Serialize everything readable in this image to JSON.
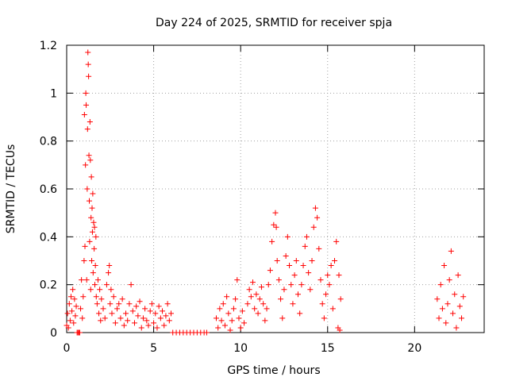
{
  "chart_data": {
    "type": "scatter",
    "title": "Day 224 of 2025, SRMTID for receiver spja",
    "xlabel": "GPS time / hours",
    "ylabel": "SRMTID / TECUs",
    "xlim": [
      0,
      24
    ],
    "ylim": [
      0,
      1.2
    ],
    "grid": true,
    "marker": "+",
    "color": "#ff0000",
    "x_ticks": [
      0,
      5,
      10,
      15,
      20
    ],
    "x_tick_labels": [
      "0",
      "5",
      "10",
      "15",
      "20"
    ],
    "y_ticks": [
      0,
      0.2,
      0.4,
      0.6,
      0.8,
      1.0,
      1.2
    ],
    "y_tick_labels": [
      "0",
      "0.2",
      "0.4",
      "0.6",
      "0.8",
      "1",
      "1.2"
    ],
    "series": [
      {
        "name": "SRMTID",
        "points": [
          [
            0.0,
            0.03
          ],
          [
            0.05,
            0.08
          ],
          [
            0.1,
            0.02
          ],
          [
            0.15,
            0.12
          ],
          [
            0.2,
            0.05
          ],
          [
            0.25,
            0.15
          ],
          [
            0.3,
            0.09
          ],
          [
            0.35,
            0.18
          ],
          [
            0.4,
            0.04
          ],
          [
            0.45,
            0.14
          ],
          [
            0.5,
            0.07
          ],
          [
            0.55,
            0.11
          ],
          [
            0.6,
            0.0
          ],
          [
            0.65,
            0.0
          ],
          [
            0.7,
            0.0
          ],
          [
            0.75,
            0.0
          ],
          [
            0.8,
            0.1
          ],
          [
            0.85,
            0.22
          ],
          [
            0.9,
            0.06
          ],
          [
            0.95,
            0.15
          ],
          [
            1.0,
            0.3
          ],
          [
            1.02,
            0.91
          ],
          [
            1.05,
            0.36
          ],
          [
            1.08,
            0.7
          ],
          [
            1.1,
            1.0
          ],
          [
            1.12,
            0.95
          ],
          [
            1.15,
            0.22
          ],
          [
            1.18,
            0.6
          ],
          [
            1.2,
            0.85
          ],
          [
            1.22,
            1.17
          ],
          [
            1.24,
            1.12
          ],
          [
            1.26,
            1.07
          ],
          [
            1.28,
            0.74
          ],
          [
            1.3,
            0.55
          ],
          [
            1.32,
            0.38
          ],
          [
            1.34,
            0.88
          ],
          [
            1.36,
            0.72
          ],
          [
            1.38,
            0.18
          ],
          [
            1.4,
            0.48
          ],
          [
            1.42,
            0.65
          ],
          [
            1.44,
            0.3
          ],
          [
            1.46,
            0.52
          ],
          [
            1.48,
            0.42
          ],
          [
            1.5,
            0.58
          ],
          [
            1.52,
            0.25
          ],
          [
            1.55,
            0.46
          ],
          [
            1.58,
            0.35
          ],
          [
            1.6,
            0.44
          ],
          [
            1.62,
            0.2
          ],
          [
            1.65,
            0.28
          ],
          [
            1.68,
            0.4
          ],
          [
            1.7,
            0.15
          ],
          [
            1.75,
            0.12
          ],
          [
            1.8,
            0.22
          ],
          [
            1.85,
            0.08
          ],
          [
            1.9,
            0.18
          ],
          [
            1.95,
            0.05
          ],
          [
            2.0,
            0.14
          ],
          [
            2.1,
            0.1
          ],
          [
            2.2,
            0.06
          ],
          [
            2.3,
            0.2
          ],
          [
            2.4,
            0.25
          ],
          [
            2.45,
            0.28
          ],
          [
            2.5,
            0.12
          ],
          [
            2.55,
            0.18
          ],
          [
            2.6,
            0.08
          ],
          [
            2.7,
            0.15
          ],
          [
            2.8,
            0.04
          ],
          [
            2.9,
            0.1
          ],
          [
            3.0,
            0.12
          ],
          [
            3.1,
            0.06
          ],
          [
            3.2,
            0.14
          ],
          [
            3.3,
            0.03
          ],
          [
            3.4,
            0.08
          ],
          [
            3.5,
            0.05
          ],
          [
            3.6,
            0.12
          ],
          [
            3.7,
            0.2
          ],
          [
            3.8,
            0.09
          ],
          [
            3.9,
            0.04
          ],
          [
            4.0,
            0.11
          ],
          [
            4.1,
            0.07
          ],
          [
            4.2,
            0.13
          ],
          [
            4.3,
            0.02
          ],
          [
            4.4,
            0.06
          ],
          [
            4.5,
            0.1
          ],
          [
            4.6,
            0.05
          ],
          [
            4.7,
            0.03
          ],
          [
            4.8,
            0.09
          ],
          [
            4.9,
            0.12
          ],
          [
            5.0,
            0.04
          ],
          [
            5.1,
            0.08
          ],
          [
            5.2,
            0.02
          ],
          [
            5.3,
            0.11
          ],
          [
            5.4,
            0.06
          ],
          [
            5.5,
            0.09
          ],
          [
            5.6,
            0.03
          ],
          [
            5.7,
            0.07
          ],
          [
            5.8,
            0.12
          ],
          [
            5.9,
            0.05
          ],
          [
            6.0,
            0.08
          ],
          [
            6.1,
            0.0
          ],
          [
            6.3,
            0.0
          ],
          [
            6.5,
            0.0
          ],
          [
            6.7,
            0.0
          ],
          [
            6.9,
            0.0
          ],
          [
            7.1,
            0.0
          ],
          [
            7.3,
            0.0
          ],
          [
            7.5,
            0.0
          ],
          [
            7.7,
            0.0
          ],
          [
            7.9,
            0.0
          ],
          [
            8.05,
            0.0
          ],
          [
            8.6,
            0.06
          ],
          [
            8.7,
            0.02
          ],
          [
            8.8,
            0.1
          ],
          [
            8.9,
            0.05
          ],
          [
            9.0,
            0.12
          ],
          [
            9.1,
            0.03
          ],
          [
            9.2,
            0.15
          ],
          [
            9.3,
            0.08
          ],
          [
            9.4,
            0.01
          ],
          [
            9.5,
            0.05
          ],
          [
            9.6,
            0.1
          ],
          [
            9.7,
            0.14
          ],
          [
            9.8,
            0.22
          ],
          [
            9.9,
            0.06
          ],
          [
            10.0,
            0.02
          ],
          [
            10.1,
            0.09
          ],
          [
            10.2,
            0.04
          ],
          [
            10.4,
            0.12
          ],
          [
            10.5,
            0.18
          ],
          [
            10.6,
            0.15
          ],
          [
            10.7,
            0.21
          ],
          [
            10.8,
            0.1
          ],
          [
            10.9,
            0.16
          ],
          [
            11.0,
            0.08
          ],
          [
            11.1,
            0.14
          ],
          [
            11.2,
            0.19
          ],
          [
            11.3,
            0.12
          ],
          [
            11.4,
            0.05
          ],
          [
            11.5,
            0.1
          ],
          [
            11.6,
            0.2
          ],
          [
            11.7,
            0.26
          ],
          [
            11.8,
            0.38
          ],
          [
            11.9,
            0.45
          ],
          [
            12.0,
            0.5
          ],
          [
            12.05,
            0.44
          ],
          [
            12.1,
            0.3
          ],
          [
            12.2,
            0.22
          ],
          [
            12.3,
            0.14
          ],
          [
            12.4,
            0.06
          ],
          [
            12.5,
            0.18
          ],
          [
            12.6,
            0.32
          ],
          [
            12.7,
            0.4
          ],
          [
            12.8,
            0.28
          ],
          [
            12.9,
            0.2
          ],
          [
            13.0,
            0.12
          ],
          [
            13.1,
            0.24
          ],
          [
            13.2,
            0.3
          ],
          [
            13.3,
            0.16
          ],
          [
            13.4,
            0.08
          ],
          [
            13.5,
            0.2
          ],
          [
            13.6,
            0.28
          ],
          [
            13.7,
            0.36
          ],
          [
            13.8,
            0.4
          ],
          [
            13.9,
            0.25
          ],
          [
            14.0,
            0.18
          ],
          [
            14.1,
            0.3
          ],
          [
            14.2,
            0.44
          ],
          [
            14.3,
            0.52
          ],
          [
            14.4,
            0.48
          ],
          [
            14.5,
            0.35
          ],
          [
            14.6,
            0.22
          ],
          [
            14.7,
            0.12
          ],
          [
            14.8,
            0.06
          ],
          [
            14.9,
            0.16
          ],
          [
            15.0,
            0.24
          ],
          [
            15.1,
            0.2
          ],
          [
            15.2,
            0.28
          ],
          [
            15.3,
            0.1
          ],
          [
            15.4,
            0.3
          ],
          [
            15.5,
            0.38
          ],
          [
            15.6,
            0.02
          ],
          [
            15.65,
            0.24
          ],
          [
            15.7,
            0.01
          ],
          [
            15.75,
            0.14
          ],
          [
            21.3,
            0.14
          ],
          [
            21.4,
            0.06
          ],
          [
            21.5,
            0.2
          ],
          [
            21.6,
            0.1
          ],
          [
            21.7,
            0.28
          ],
          [
            21.8,
            0.04
          ],
          [
            21.9,
            0.12
          ],
          [
            22.0,
            0.22
          ],
          [
            22.1,
            0.34
          ],
          [
            22.2,
            0.08
          ],
          [
            22.3,
            0.16
          ],
          [
            22.4,
            0.02
          ],
          [
            22.5,
            0.24
          ],
          [
            22.6,
            0.11
          ],
          [
            22.7,
            0.06
          ],
          [
            22.8,
            0.15
          ]
        ]
      }
    ]
  }
}
